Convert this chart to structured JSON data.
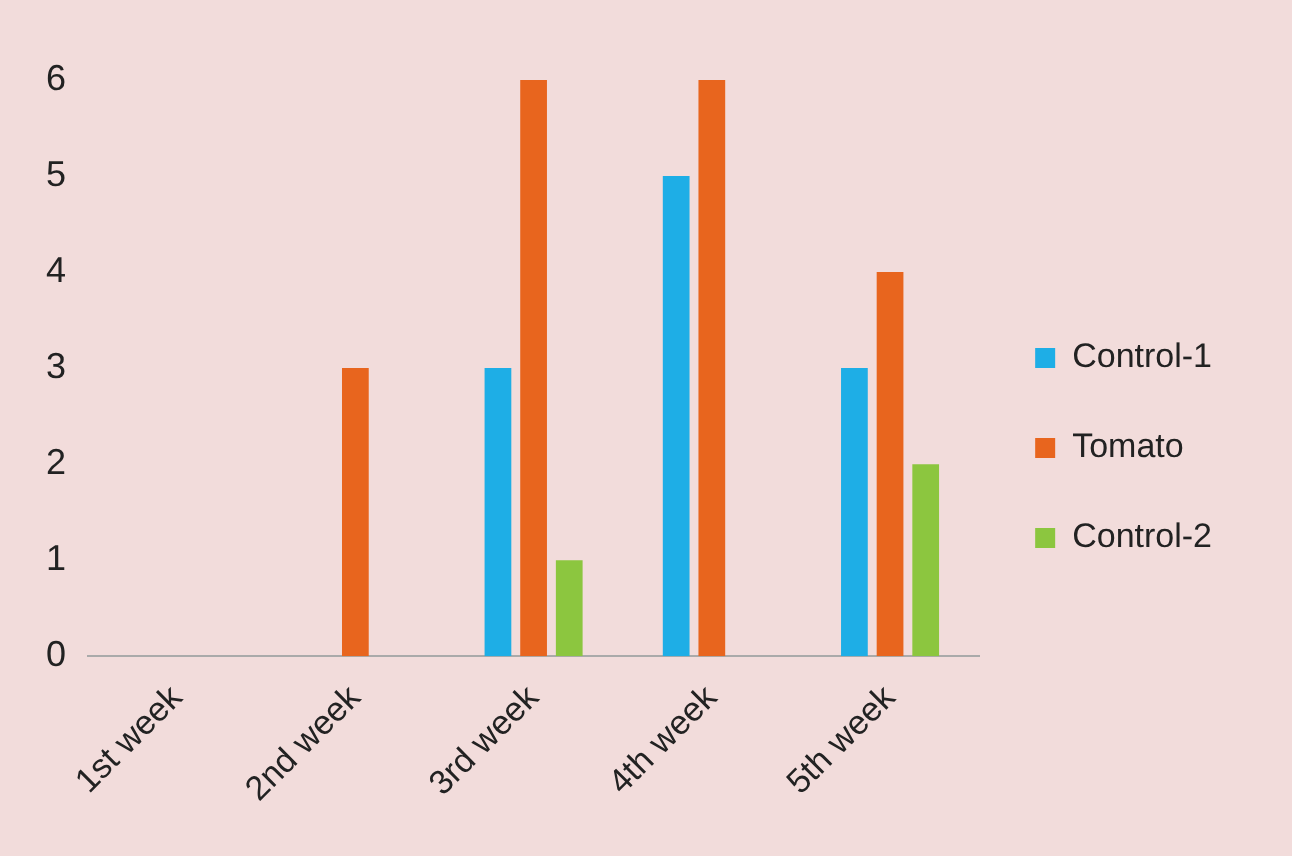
{
  "chart_data": {
    "type": "bar",
    "categories": [
      "1st week",
      "2nd week",
      "3rd week",
      "4th week",
      "5th week"
    ],
    "series": [
      {
        "name": "Control-1",
        "color": "#1eaee6",
        "values": [
          0,
          0,
          3,
          5,
          3
        ]
      },
      {
        "name": "Tomato",
        "color": "#e8651e",
        "values": [
          0,
          3,
          6,
          6,
          4
        ]
      },
      {
        "name": "Control-2",
        "color": "#8cc63f",
        "values": [
          0,
          0,
          1,
          0,
          2
        ]
      }
    ],
    "ylim": [
      0,
      6
    ],
    "yticks": [
      0,
      1,
      2,
      3,
      4,
      5,
      6
    ],
    "grid": false,
    "legend": "right"
  }
}
